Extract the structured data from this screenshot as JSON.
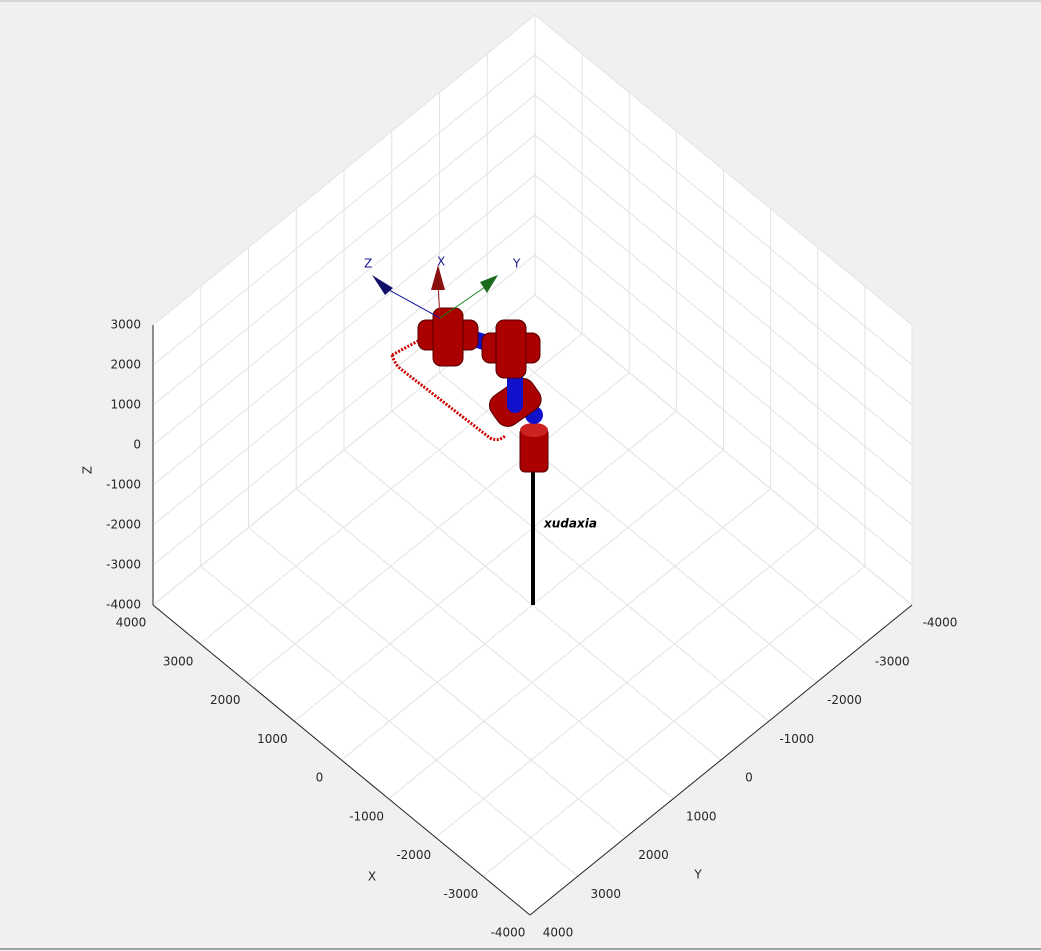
{
  "axes": {
    "x_label": "X",
    "y_label": "Y",
    "z_label": "Z",
    "x_ticks": [
      4000,
      3000,
      2000,
      1000,
      0,
      -1000,
      -2000,
      -3000,
      -4000
    ],
    "y_ticks": [
      4000,
      3000,
      2000,
      1000,
      0,
      -1000,
      -2000,
      -3000,
      -4000
    ],
    "z_ticks": [
      3000,
      2000,
      1000,
      0,
      -1000,
      -2000,
      -3000,
      -4000
    ]
  },
  "robot_name": "xudaxia",
  "frame_labels": {
    "x": "X",
    "y": "Y",
    "z": "Z"
  }
}
